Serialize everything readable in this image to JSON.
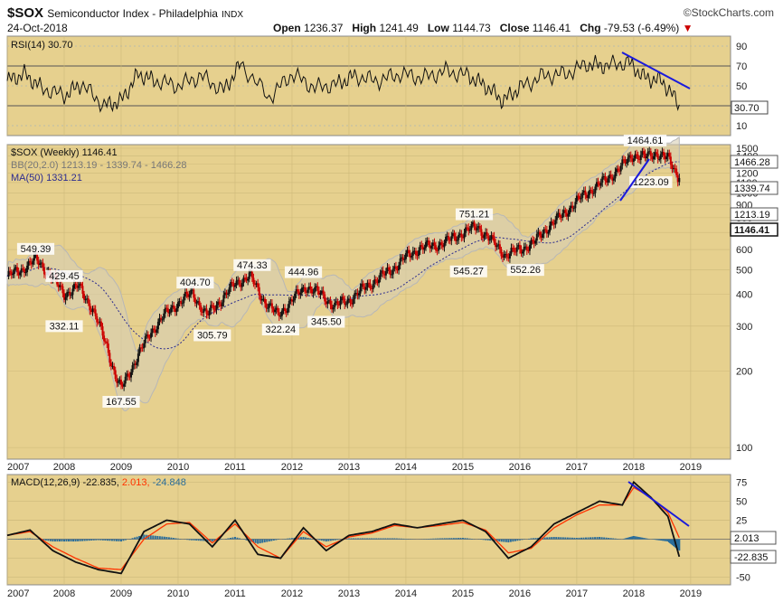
{
  "header": {
    "symbol": "$SOX",
    "name": "Semiconductor Index - Philadelphia",
    "exchange": "INDX",
    "brand": "©StockCharts.com",
    "date": "24-Oct-2018",
    "open_label": "Open",
    "open": "1236.37",
    "high_label": "High",
    "high": "1241.49",
    "low_label": "Low",
    "low": "1144.73",
    "close_label": "Close",
    "close": "1146.41",
    "chg_label": "Chg",
    "chg": "-79.53 (-6.49%)"
  },
  "legends": {
    "rsi": "RSI(14) 30.70",
    "price": "$SOX (Weekly) 1146.41",
    "bb": "BB(20,2.0) 1213.19 - 1339.74 - 1466.28",
    "ma": "MA(50) 1331.21",
    "macd_prefix": "MACD(12,26,9)",
    "macd_v1": "-22.835,",
    "macd_v2": "2.013,",
    "macd_v3": "-24.848"
  },
  "colors": {
    "panel_bg": "#e6d08e",
    "up": "#111111",
    "down": "#cc0000",
    "rsi_overbought": "#4f8a3a",
    "trend": "#1a1adc",
    "ma": "#2b2b8e",
    "macd_signal": "#ff3300",
    "macd_hist": "#2a6d9a"
  },
  "chart_data": [
    {
      "type": "line",
      "name": "RSI(14)",
      "value": 30.7,
      "ylim": [
        0,
        100
      ],
      "ticks": [
        10,
        30,
        50,
        70,
        90
      ],
      "badge": "30.70",
      "x": [
        2007.0,
        2007.3,
        2007.6,
        2008.0,
        2008.3,
        2008.7,
        2009.0,
        2009.3,
        2009.6,
        2010.0,
        2010.4,
        2010.8,
        2011.1,
        2011.6,
        2012.0,
        2012.4,
        2012.8,
        2013.1,
        2013.5,
        2013.9,
        2014.3,
        2014.7,
        2015.1,
        2015.4,
        2015.7,
        2016.0,
        2016.4,
        2016.8,
        2017.2,
        2017.5,
        2017.9,
        2018.2,
        2018.5,
        2018.8
      ],
      "values": [
        55,
        62,
        48,
        40,
        52,
        30,
        35,
        62,
        55,
        50,
        60,
        45,
        72,
        38,
        62,
        48,
        52,
        60,
        55,
        62,
        58,
        65,
        60,
        50,
        35,
        48,
        60,
        62,
        72,
        70,
        74,
        58,
        55,
        31
      ]
    },
    {
      "type": "candlestick",
      "name": "$SOX (Weekly)",
      "yscale": "log",
      "ylim": [
        90,
        1550
      ],
      "yticks": [
        100,
        200,
        300,
        400,
        500,
        600,
        700,
        800,
        900,
        1000,
        1100,
        1200,
        1300,
        1400,
        1500
      ],
      "xticks": [
        "2007",
        "2008",
        "2009",
        "2010",
        "2011",
        "2012",
        "2013",
        "2014",
        "2015",
        "2016",
        "2017",
        "2018",
        "2019"
      ],
      "x": [
        2007.0,
        2007.25,
        2007.5,
        2007.75,
        2008.0,
        2008.25,
        2008.5,
        2008.75,
        2008.9,
        2009.0,
        2009.25,
        2009.5,
        2009.75,
        2010.0,
        2010.25,
        2010.5,
        2010.75,
        2011.0,
        2011.25,
        2011.5,
        2011.75,
        2012.0,
        2012.25,
        2012.5,
        2012.75,
        2013.0,
        2013.25,
        2013.5,
        2013.75,
        2014.0,
        2014.25,
        2014.5,
        2014.75,
        2015.0,
        2015.25,
        2015.5,
        2015.75,
        2016.0,
        2016.25,
        2016.5,
        2016.75,
        2017.0,
        2017.25,
        2017.5,
        2017.75,
        2018.0,
        2018.2,
        2018.4,
        2018.6,
        2018.8
      ],
      "close": [
        470,
        500,
        549,
        480,
        400,
        430,
        350,
        250,
        190,
        170,
        220,
        280,
        330,
        370,
        404,
        330,
        380,
        440,
        474,
        380,
        330,
        380,
        430,
        400,
        360,
        380,
        420,
        460,
        500,
        560,
        610,
        620,
        650,
        700,
        740,
        650,
        570,
        600,
        640,
        740,
        820,
        930,
        1030,
        1120,
        1250,
        1420,
        1380,
        1440,
        1360,
        1146
      ],
      "labels": [
        {
          "x": 2007.5,
          "y": 549.39,
          "text": "549.39",
          "pos": "above"
        },
        {
          "x": 2008.0,
          "y": 429.45,
          "text": "429.45",
          "pos": "above"
        },
        {
          "x": 2008.0,
          "y": 332.11,
          "text": "332.11",
          "pos": "below"
        },
        {
          "x": 2009.0,
          "y": 167.55,
          "text": "167.55",
          "pos": "below"
        },
        {
          "x": 2010.3,
          "y": 404.7,
          "text": "404.70",
          "pos": "above"
        },
        {
          "x": 2010.6,
          "y": 305.79,
          "text": "305.79",
          "pos": "below"
        },
        {
          "x": 2011.3,
          "y": 474.33,
          "text": "474.33",
          "pos": "above"
        },
        {
          "x": 2011.8,
          "y": 322.24,
          "text": "322.24",
          "pos": "below"
        },
        {
          "x": 2012.2,
          "y": 444.96,
          "text": "444.96",
          "pos": "above"
        },
        {
          "x": 2012.6,
          "y": 345.5,
          "text": "345.50",
          "pos": "below"
        },
        {
          "x": 2015.1,
          "y": 545.27,
          "text": "545.27",
          "pos": "below"
        },
        {
          "x": 2015.2,
          "y": 751.21,
          "text": "751.21",
          "pos": "above"
        },
        {
          "x": 2016.1,
          "y": 552.26,
          "text": "552.26",
          "pos": "below"
        },
        {
          "x": 2018.2,
          "y": 1464.61,
          "text": "1464.61",
          "pos": "above"
        },
        {
          "x": 2018.3,
          "y": 1223.09,
          "text": "1223.09",
          "pos": "below"
        }
      ],
      "badges": [
        "1466.28",
        "1339.74",
        "1213.19",
        "1146.41"
      ]
    },
    {
      "type": "line",
      "name": "MACD(12,26,9)",
      "ylim": [
        -60,
        85
      ],
      "ticks": [
        -50,
        -25,
        0,
        25,
        50,
        75
      ],
      "badges": [
        "2.013",
        "-22.835"
      ],
      "x": [
        2007.0,
        2007.4,
        2007.8,
        2008.2,
        2008.6,
        2009.0,
        2009.4,
        2009.8,
        2010.2,
        2010.6,
        2011.0,
        2011.4,
        2011.8,
        2012.2,
        2012.6,
        2013.0,
        2013.4,
        2013.8,
        2014.2,
        2014.6,
        2015.0,
        2015.4,
        2015.8,
        2016.2,
        2016.6,
        2017.0,
        2017.4,
        2017.8,
        2018.0,
        2018.3,
        2018.6,
        2018.8
      ],
      "macd": [
        5,
        12,
        -15,
        -30,
        -40,
        -45,
        10,
        25,
        20,
        -10,
        25,
        -20,
        -25,
        15,
        -15,
        5,
        10,
        20,
        15,
        20,
        25,
        10,
        -25,
        -10,
        20,
        35,
        50,
        45,
        75,
        55,
        30,
        -23
      ],
      "signal": [
        5,
        10,
        -10,
        -25,
        -38,
        -40,
        0,
        20,
        22,
        -5,
        20,
        -10,
        -25,
        10,
        -10,
        3,
        8,
        18,
        15,
        18,
        22,
        12,
        -18,
        -12,
        15,
        32,
        45,
        45,
        68,
        55,
        35,
        2
      ]
    }
  ]
}
